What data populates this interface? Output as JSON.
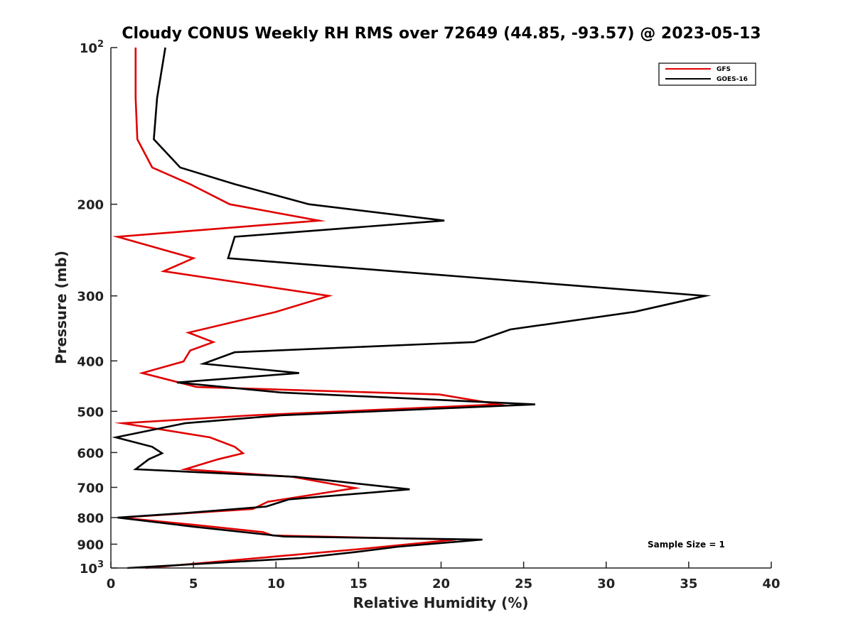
{
  "chart_data": {
    "type": "line",
    "title": "Cloudy CONUS Weekly RH RMS over 72649 (44.85, -93.57) @ 2023-05-13",
    "xlabel": "Relative Humidity (%)",
    "ylabel": "Pressure (mb)",
    "xlim": [
      0,
      40
    ],
    "ylim": [
      100,
      1000
    ],
    "y_scale": "log",
    "y_reversed": true,
    "x_ticks": [
      0,
      5,
      10,
      15,
      20,
      25,
      30,
      35,
      40
    ],
    "y_ticks": [
      {
        "value": 100,
        "label": "10",
        "sup": "2"
      },
      {
        "value": 200,
        "label": "200",
        "sup": ""
      },
      {
        "value": 300,
        "label": "300",
        "sup": ""
      },
      {
        "value": 400,
        "label": "400",
        "sup": ""
      },
      {
        "value": 500,
        "label": "500",
        "sup": ""
      },
      {
        "value": 600,
        "label": "600",
        "sup": ""
      },
      {
        "value": 700,
        "label": "700",
        "sup": ""
      },
      {
        "value": 800,
        "label": "800",
        "sup": ""
      },
      {
        "value": 900,
        "label": "900",
        "sup": ""
      },
      {
        "value": 1000,
        "label": "10",
        "sup": "3"
      }
    ],
    "grid": false,
    "legend_position": "top-right",
    "annotation": "Sample Size = 1",
    "series": [
      {
        "name": "GFS",
        "color": "#e00000",
        "points": [
          [
            1.5,
            100
          ],
          [
            1.5,
            125
          ],
          [
            1.6,
            150
          ],
          [
            2.5,
            170
          ],
          [
            4.8,
            183
          ],
          [
            7.2,
            200
          ],
          [
            12.6,
            215
          ],
          [
            0.4,
            231
          ],
          [
            5.0,
            254
          ],
          [
            3.2,
            269
          ],
          [
            13.2,
            300
          ],
          [
            10.0,
            322
          ],
          [
            4.7,
            353
          ],
          [
            6.2,
            368
          ],
          [
            4.8,
            382
          ],
          [
            4.4,
            401
          ],
          [
            1.9,
            422
          ],
          [
            5.2,
            449
          ],
          [
            19.9,
            464
          ],
          [
            23.5,
            485
          ],
          [
            8.5,
            509
          ],
          [
            0.7,
            527
          ],
          [
            6.0,
            561
          ],
          [
            7.5,
            585
          ],
          [
            8.0,
            602
          ],
          [
            6.5,
            618
          ],
          [
            4.5,
            646
          ],
          [
            11.0,
            668
          ],
          [
            14.8,
            702
          ],
          [
            9.5,
            746
          ],
          [
            8.6,
            770
          ],
          [
            0.6,
            800
          ],
          [
            5.0,
            826
          ],
          [
            9.2,
            853
          ],
          [
            9.8,
            866
          ],
          [
            20.9,
            882
          ],
          [
            15.0,
            920
          ],
          [
            10.0,
            950
          ],
          [
            2.1,
            1000
          ]
        ]
      },
      {
        "name": "GOES-16",
        "color": "#000000",
        "points": [
          [
            3.3,
            100
          ],
          [
            2.8,
            125
          ],
          [
            2.6,
            150
          ],
          [
            4.2,
            170
          ],
          [
            7.5,
            183
          ],
          [
            12.0,
            200
          ],
          [
            20.2,
            215
          ],
          [
            7.5,
            231
          ],
          [
            7.1,
            254
          ],
          [
            36.0,
            300
          ],
          [
            31.7,
            322
          ],
          [
            24.2,
            348
          ],
          [
            22.0,
            368
          ],
          [
            7.5,
            385
          ],
          [
            5.6,
            405
          ],
          [
            11.4,
            422
          ],
          [
            4.0,
            440
          ],
          [
            10.3,
            460
          ],
          [
            25.7,
            485
          ],
          [
            10.3,
            509
          ],
          [
            4.5,
            527
          ],
          [
            0.3,
            561
          ],
          [
            2.5,
            585
          ],
          [
            3.1,
            602
          ],
          [
            2.3,
            618
          ],
          [
            1.5,
            646
          ],
          [
            11.2,
            668
          ],
          [
            18.1,
            706
          ],
          [
            10.8,
            738
          ],
          [
            9.4,
            762
          ],
          [
            4.3,
            785
          ],
          [
            0.4,
            800
          ],
          [
            5.0,
            833
          ],
          [
            10.5,
            870
          ],
          [
            22.5,
            882
          ],
          [
            17.4,
            910
          ],
          [
            14.8,
            932
          ],
          [
            11.5,
            957
          ],
          [
            1.0,
            1000
          ]
        ]
      }
    ]
  }
}
